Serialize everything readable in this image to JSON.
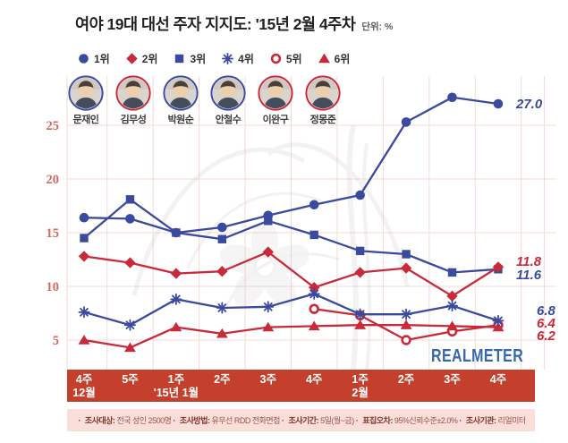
{
  "header": {
    "title": "여야 19대 대선 주자 지지도: '15년 2월 4주차",
    "unit_label": "단위: %"
  },
  "colors": {
    "blue": "#3a4a9e",
    "red": "#c92a3a",
    "axis_band": "#c5402c",
    "grid": "#f4dad4",
    "ytick": "#d4695e",
    "footer_bg": "#f9ded9",
    "footer_text": "#8a4038",
    "logo_blue": "#3767ab"
  },
  "legend": {
    "items": [
      {
        "rank_label": "1위",
        "marker": "circle",
        "color": "#3a4a9e"
      },
      {
        "rank_label": "2위",
        "marker": "diamond",
        "color": "#c92a3a"
      },
      {
        "rank_label": "3위",
        "marker": "square",
        "color": "#3a4a9e"
      },
      {
        "rank_label": "4위",
        "marker": "asterisk",
        "color": "#3a4a9e"
      },
      {
        "rank_label": "5위",
        "marker": "ring",
        "color": "#c92a3a"
      },
      {
        "rank_label": "6위",
        "marker": "triangle",
        "color": "#c92a3a"
      }
    ]
  },
  "candidates": [
    {
      "key": "moon-jae-in",
      "name": "문재인",
      "ring": "#3a4a9e"
    },
    {
      "key": "kim-moo-sung",
      "name": "김무성",
      "ring": "#c92a3a"
    },
    {
      "key": "park-won-soon",
      "name": "박원순",
      "ring": "#3a4a9e"
    },
    {
      "key": "ahn-cheol-soo",
      "name": "안철수",
      "ring": "#3a4a9e"
    },
    {
      "key": "lee-wan-koo",
      "name": "이완구",
      "ring": "#c92a3a"
    },
    {
      "key": "chung-mong-joon",
      "name": "정몽준",
      "ring": "#c92a3a"
    }
  ],
  "chart_data": {
    "type": "line",
    "unit": "%",
    "grid": true,
    "categories": [
      {
        "week": "4주",
        "month": "12월"
      },
      {
        "week": "5주",
        "month": ""
      },
      {
        "week": "1주",
        "month": "'15년 1월"
      },
      {
        "week": "2주",
        "month": ""
      },
      {
        "week": "3주",
        "month": ""
      },
      {
        "week": "4주",
        "month": ""
      },
      {
        "week": "1주",
        "month": "2월"
      },
      {
        "week": "2주",
        "month": ""
      },
      {
        "week": "3주",
        "month": ""
      },
      {
        "week": "4주",
        "month": ""
      }
    ],
    "y_axis": {
      "ticks": [
        5,
        10,
        15,
        20,
        25
      ],
      "range": [
        3.5,
        29
      ]
    },
    "series": [
      {
        "key": "moon-jae-in",
        "name": "문재인",
        "rank": "1위",
        "marker": "circle",
        "color": "#3a4a9e",
        "values": [
          16.4,
          16.3,
          15.0,
          15.5,
          16.6,
          17.6,
          18.5,
          25.3,
          27.6,
          27.0
        ],
        "end_label": "27.0"
      },
      {
        "key": "kim-moo-sung",
        "name": "김무성",
        "rank": "2위",
        "marker": "diamond",
        "color": "#c92a3a",
        "values": [
          12.8,
          12.2,
          11.2,
          11.4,
          13.2,
          9.9,
          11.3,
          11.7,
          9.1,
          11.8
        ],
        "end_label": "11.8"
      },
      {
        "key": "park-won-soon",
        "name": "박원순",
        "rank": "3위",
        "marker": "square",
        "color": "#3a4a9e",
        "values": [
          14.5,
          18.1,
          15.0,
          14.4,
          16.1,
          14.8,
          13.3,
          13.0,
          11.3,
          11.6
        ],
        "end_label": "11.6"
      },
      {
        "key": "ahn-cheol-soo",
        "name": "안철수",
        "rank": "4위",
        "marker": "asterisk",
        "color": "#3a4a9e",
        "values": [
          7.6,
          6.4,
          8.8,
          8.0,
          8.1,
          9.3,
          7.4,
          7.4,
          8.2,
          6.8
        ],
        "end_label": "6.8"
      },
      {
        "key": "lee-wan-koo",
        "name": "이완구",
        "rank": "5위",
        "marker": "ring",
        "color": "#c92a3a",
        "values": [
          null,
          null,
          null,
          null,
          null,
          7.9,
          7.3,
          5.0,
          5.8,
          6.4
        ],
        "end_label": "6.4"
      },
      {
        "key": "chung-mong-joon",
        "name": "정몽준",
        "rank": "6위",
        "marker": "triangle",
        "color": "#c92a3a",
        "values": [
          5.0,
          4.3,
          6.2,
          5.6,
          6.2,
          6.3,
          6.4,
          6.4,
          6.3,
          6.2
        ],
        "end_label": "6.2"
      }
    ],
    "legend_position": "top",
    "title": "여야 19대 대선 주자 지지도: '15년 2월 4주차"
  },
  "branding": {
    "logo": "REALMETER"
  },
  "footer": {
    "items": [
      {
        "label": "조사대상:",
        "value": "전국 성인 2500명"
      },
      {
        "label": "조사방법:",
        "value": "유무선 RDD 전화면접"
      },
      {
        "label": "조사기간:",
        "value": "5일(월~금)"
      },
      {
        "label": "표집오차:",
        "value": "95%신뢰수준±2.0%"
      },
      {
        "label": "조사기관:",
        "value": "리얼미터"
      }
    ]
  }
}
